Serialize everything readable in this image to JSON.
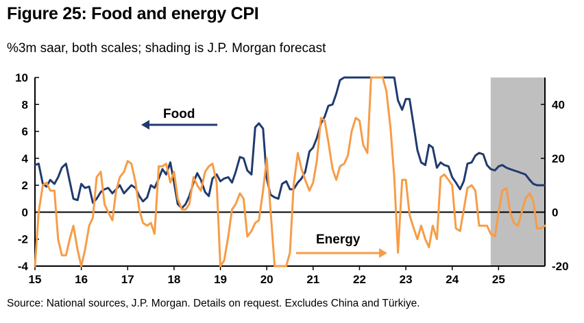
{
  "title": "Figure 25: Food and energy CPI",
  "subtitle": "%3m saar, both scales; shading is J.P. Morgan forecast",
  "source": "Source: National sources, J.P. Morgan. Details on request. Excludes China and Türkiye.",
  "chart_data": {
    "type": "line",
    "x_ticks": [
      "15",
      "16",
      "17",
      "18",
      "19",
      "20",
      "21",
      "22",
      "23",
      "24",
      "25"
    ],
    "xlim": [
      2015.0,
      2026.0
    ],
    "left_axis": {
      "ylim": [
        -4,
        10
      ],
      "ticks": [
        "-4",
        "-2",
        "0",
        "2",
        "4",
        "6",
        "8",
        "10"
      ]
    },
    "right_axis": {
      "ylim": [
        -20,
        50
      ],
      "ticks": [
        "-20",
        "0",
        "20",
        "40"
      ]
    },
    "forecast_shading": {
      "from": 2024.83,
      "to": 2026.0,
      "color": "#bfbfbf"
    },
    "annotations": [
      {
        "text": "Food",
        "series": "Food",
        "arrow": "left"
      },
      {
        "text": "Energy",
        "series": "Energy",
        "arrow": "right"
      }
    ],
    "series": [
      {
        "name": "Food",
        "axis": "left",
        "color": "#1f3a6e",
        "x": [
          2015.0,
          2015.08,
          2015.17,
          2015.25,
          2015.33,
          2015.42,
          2015.5,
          2015.58,
          2015.67,
          2015.75,
          2015.83,
          2015.92,
          2016.0,
          2016.08,
          2016.17,
          2016.25,
          2016.33,
          2016.42,
          2016.5,
          2016.58,
          2016.67,
          2016.75,
          2016.83,
          2016.92,
          2017.0,
          2017.08,
          2017.17,
          2017.25,
          2017.33,
          2017.42,
          2017.5,
          2017.58,
          2017.67,
          2017.75,
          2017.83,
          2017.92,
          2018.0,
          2018.08,
          2018.17,
          2018.25,
          2018.33,
          2018.42,
          2018.5,
          2018.58,
          2018.67,
          2018.75,
          2018.83,
          2018.92,
          2019.0,
          2019.08,
          2019.17,
          2019.25,
          2019.33,
          2019.42,
          2019.5,
          2019.58,
          2019.67,
          2019.75,
          2019.83,
          2019.92,
          2020.0,
          2020.08,
          2020.17,
          2020.25,
          2020.33,
          2020.42,
          2020.5,
          2020.58,
          2020.67,
          2020.75,
          2020.83,
          2020.92,
          2021.0,
          2021.08,
          2021.17,
          2021.25,
          2021.33,
          2021.42,
          2021.5,
          2021.58,
          2021.67,
          2021.75,
          2021.83,
          2021.92,
          2022.0,
          2022.08,
          2022.17,
          2022.25,
          2022.33,
          2022.67,
          2022.75,
          2022.83,
          2022.92,
          2023.0,
          2023.08,
          2023.17,
          2023.25,
          2023.33,
          2023.42,
          2023.5,
          2023.58,
          2023.67,
          2023.75,
          2023.83,
          2023.92,
          2024.0,
          2024.08,
          2024.17,
          2024.25,
          2024.33,
          2024.42,
          2024.5,
          2024.58,
          2024.67,
          2024.75,
          2024.83,
          2024.92,
          2025.0,
          2025.08,
          2025.17,
          2025.25,
          2025.33,
          2025.42,
          2025.5,
          2025.58,
          2025.67,
          2025.75,
          2025.83,
          2025.92,
          2026.0
        ],
        "values": [
          3.5,
          3.6,
          2.1,
          1.9,
          2.4,
          2.1,
          2.6,
          3.3,
          3.6,
          2.3,
          1.0,
          0.9,
          2.1,
          1.8,
          1.9,
          0.7,
          1.0,
          1.5,
          1.7,
          1.8,
          1.4,
          1.7,
          2.0,
          1.4,
          1.7,
          2.0,
          1.8,
          1.2,
          0.8,
          1.1,
          2.0,
          1.8,
          2.5,
          3.2,
          2.8,
          3.7,
          2.2,
          0.6,
          0.3,
          0.6,
          1.2,
          2.2,
          2.9,
          2.4,
          1.5,
          1.2,
          2.5,
          2.8,
          2.3,
          2.5,
          2.6,
          2.2,
          3.0,
          4.1,
          4.0,
          3.1,
          2.8,
          6.3,
          6.6,
          6.2,
          2.5,
          1.3,
          1.1,
          1.0,
          2.1,
          2.3,
          1.7,
          1.7,
          2.2,
          2.5,
          3.0,
          4.5,
          4.8,
          5.5,
          6.6,
          7.1,
          7.9,
          8.0,
          8.8,
          9.8,
          10.0,
          10.0,
          10.0,
          10.0,
          10.0,
          10.0,
          10.0,
          10.0,
          10.0,
          10.0,
          10.0,
          8.3,
          7.6,
          8.4,
          8.4,
          6.4,
          4.6,
          3.7,
          3.5,
          5.0,
          4.8,
          3.3,
          3.7,
          3.5,
          3.4,
          2.6,
          2.2,
          1.7,
          2.3,
          3.6,
          3.7,
          4.2,
          4.4,
          4.3,
          3.5,
          3.2,
          3.1,
          3.4,
          3.5,
          3.3,
          3.2,
          3.1,
          3.0,
          2.9,
          2.8,
          2.4,
          2.1,
          2.0,
          2.0,
          2.0
        ]
      },
      {
        "name": "Energy",
        "axis": "right",
        "color": "#f79c46",
        "x": [
          2015.0,
          2015.08,
          2015.17,
          2015.25,
          2015.33,
          2015.42,
          2015.5,
          2015.58,
          2015.67,
          2015.75,
          2015.83,
          2015.92,
          2016.0,
          2016.08,
          2016.17,
          2016.25,
          2016.33,
          2016.42,
          2016.5,
          2016.58,
          2016.67,
          2016.75,
          2016.83,
          2016.92,
          2017.0,
          2017.08,
          2017.17,
          2017.25,
          2017.33,
          2017.42,
          2017.5,
          2017.58,
          2017.67,
          2017.75,
          2017.83,
          2017.92,
          2018.0,
          2018.08,
          2018.17,
          2018.25,
          2018.33,
          2018.42,
          2018.5,
          2018.58,
          2018.67,
          2018.75,
          2018.83,
          2018.92,
          2019.0,
          2019.08,
          2019.17,
          2019.25,
          2019.33,
          2019.42,
          2019.5,
          2019.58,
          2019.67,
          2019.75,
          2019.83,
          2019.92,
          2020.0,
          2020.08,
          2020.17,
          2020.42,
          2020.5,
          2020.58,
          2020.67,
          2020.75,
          2020.83,
          2020.92,
          2021.0,
          2021.08,
          2021.17,
          2021.25,
          2021.33,
          2021.42,
          2021.5,
          2021.58,
          2021.67,
          2021.75,
          2021.83,
          2021.92,
          2022.0,
          2022.08,
          2022.17,
          2022.25,
          2022.33,
          2022.42,
          2022.5,
          2022.58,
          2022.67,
          2022.75,
          2022.83,
          2022.92,
          2023.0,
          2023.08,
          2023.17,
          2023.25,
          2023.33,
          2023.42,
          2023.5,
          2023.58,
          2023.67,
          2023.75,
          2023.83,
          2023.92,
          2024.0,
          2024.08,
          2024.17,
          2024.25,
          2024.33,
          2024.42,
          2024.5,
          2024.58,
          2024.67,
          2024.75,
          2024.83,
          2024.92,
          2025.0,
          2025.08,
          2025.17,
          2025.25,
          2025.33,
          2025.42,
          2025.5,
          2025.58,
          2025.67,
          2025.75,
          2025.83,
          2025.92,
          2026.0
        ],
        "values": [
          -20,
          0,
          10,
          11,
          8,
          8,
          -10,
          -16,
          -16,
          -10,
          -5,
          -14,
          -20,
          -14,
          -5,
          -2,
          13,
          15,
          3,
          0,
          -3,
          8,
          13,
          15,
          19,
          18,
          11,
          1,
          -4,
          -5,
          -4,
          -8,
          17,
          17,
          18,
          11,
          15,
          5,
          1,
          1,
          3,
          13,
          10,
          8,
          15,
          17,
          18,
          11,
          -20,
          -18,
          -9,
          1,
          3,
          7,
          5,
          -9,
          -7,
          -4,
          -3,
          8,
          20,
          1,
          -20,
          -20,
          -15,
          10,
          22,
          16,
          12,
          8,
          11,
          19,
          35,
          34,
          26,
          16,
          12,
          17,
          18,
          21,
          30,
          35,
          34,
          25,
          22,
          50,
          50,
          50,
          50,
          45,
          31,
          13,
          -15,
          12,
          12,
          -1,
          -6,
          -10,
          -5,
          -10,
          -13,
          -5,
          -10,
          13,
          14,
          12,
          10,
          -6,
          -7,
          1,
          9,
          10,
          8,
          -5,
          -5,
          -5,
          -8,
          -9,
          0,
          8,
          9,
          0,
          -4,
          -5,
          0,
          5,
          7,
          4,
          -6,
          -6,
          -5
        ]
      }
    ]
  }
}
